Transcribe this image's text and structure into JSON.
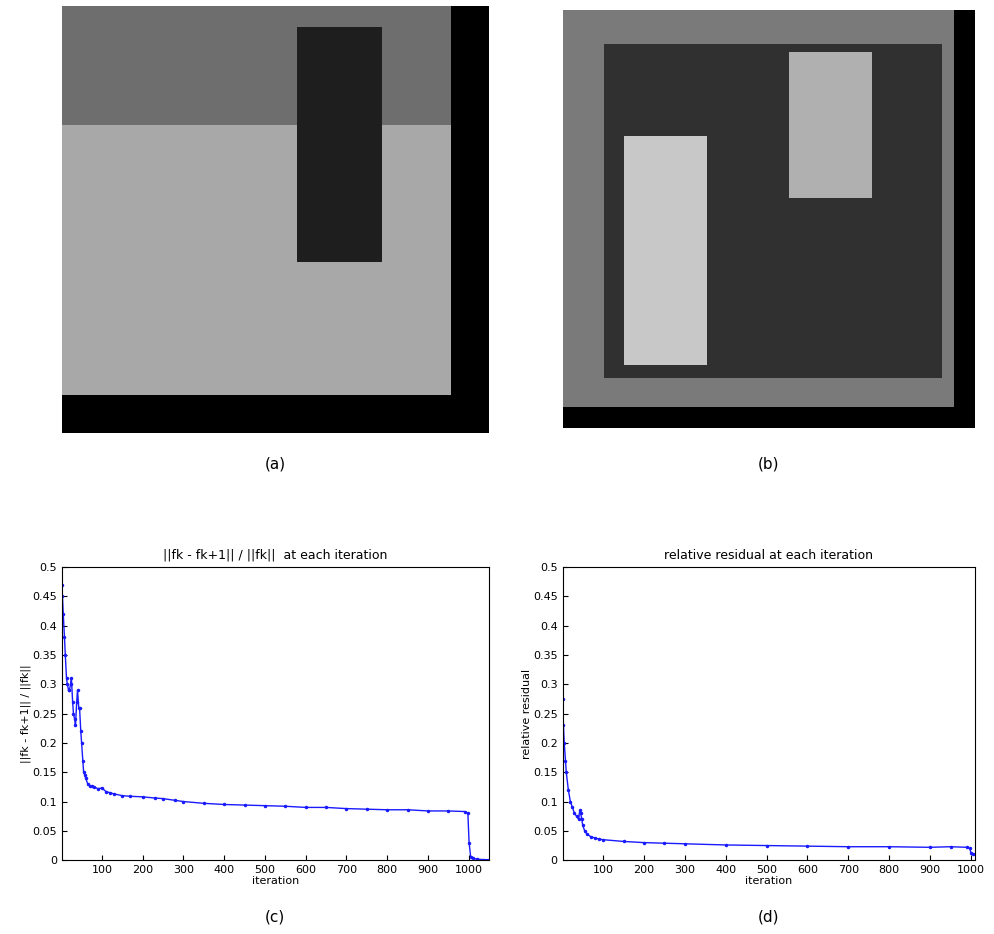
{
  "images": [
    {
      "caption": "(a)"
    },
    {
      "caption": "(b)"
    }
  ],
  "chart_data": [
    {
      "type": "line",
      "caption": "(c)",
      "title": "||fk - fk+1|| / ||fk||  at each iteration",
      "x_label": "iteration",
      "y_label": "||fk - fk+1|| / ||fk||",
      "xlim": [
        1,
        1050
      ],
      "xticks": [
        100,
        200,
        300,
        400,
        500,
        600,
        700,
        800,
        900,
        1000
      ],
      "ylim": [
        0,
        0.5
      ],
      "yticks": [
        0,
        0.05,
        0.1,
        0.15,
        0.2,
        0.25,
        0.3,
        0.35,
        0.4,
        0.45,
        0.5
      ],
      "grid": false,
      "series": [
        {
          "name": "||fk - fk+1|| / ||fk||",
          "color": "#1a1aff",
          "marker": "point",
          "line_style": "solid",
          "x": [
            1,
            3,
            5,
            8,
            10,
            13,
            15,
            18,
            20,
            23,
            25,
            28,
            30,
            33,
            35,
            38,
            40,
            43,
            45,
            48,
            50,
            53,
            55,
            58,
            60,
            65,
            70,
            75,
            80,
            90,
            100,
            110,
            120,
            130,
            150,
            170,
            200,
            230,
            250,
            280,
            300,
            350,
            400,
            450,
            500,
            550,
            600,
            650,
            700,
            750,
            800,
            850,
            900,
            950,
            990,
            998,
            1001,
            1005,
            1010,
            1020,
            1035,
            1050
          ],
          "values": [
            0.47,
            0.45,
            0.42,
            0.38,
            0.35,
            0.31,
            0.3,
            0.29,
            0.29,
            0.3,
            0.31,
            0.27,
            0.25,
            0.24,
            0.23,
            0.27,
            0.29,
            0.26,
            0.26,
            0.22,
            0.2,
            0.17,
            0.15,
            0.145,
            0.14,
            0.13,
            0.127,
            0.126,
            0.125,
            0.122,
            0.123,
            0.117,
            0.115,
            0.113,
            0.11,
            0.109,
            0.108,
            0.106,
            0.105,
            0.102,
            0.1,
            0.097,
            0.095,
            0.094,
            0.093,
            0.092,
            0.09,
            0.09,
            0.088,
            0.087,
            0.086,
            0.086,
            0.084,
            0.084,
            0.083,
            0.08,
            0.03,
            0.005,
            0.003,
            0.002,
            0.001,
            0.001
          ]
        }
      ]
    },
    {
      "type": "line",
      "caption": "(d)",
      "title": "relative residual at each iteration",
      "x_label": "iteration",
      "y_label": "relative residual",
      "xlim": [
        1,
        1010
      ],
      "xticks": [
        100,
        200,
        300,
        400,
        500,
        600,
        700,
        800,
        900,
        1000
      ],
      "ylim": [
        0,
        0.5
      ],
      "yticks": [
        0,
        0.05,
        0.1,
        0.15,
        0.2,
        0.25,
        0.3,
        0.35,
        0.4,
        0.45,
        0.5
      ],
      "grid": false,
      "series": [
        {
          "name": "relative residual",
          "color": "#1a1aff",
          "marker": "point",
          "line_style": "solid",
          "x": [
            1,
            3,
            5,
            8,
            10,
            15,
            20,
            25,
            30,
            35,
            40,
            43,
            45,
            48,
            50,
            55,
            60,
            70,
            80,
            90,
            100,
            150,
            200,
            250,
            300,
            400,
            500,
            600,
            700,
            800,
            900,
            950,
            990,
            997,
            1000,
            1005,
            1010
          ],
          "values": [
            0.275,
            0.23,
            0.2,
            0.17,
            0.15,
            0.12,
            0.1,
            0.09,
            0.08,
            0.075,
            0.07,
            0.085,
            0.08,
            0.07,
            0.06,
            0.05,
            0.045,
            0.04,
            0.038,
            0.036,
            0.035,
            0.032,
            0.03,
            0.029,
            0.028,
            0.026,
            0.025,
            0.024,
            0.023,
            0.023,
            0.022,
            0.023,
            0.022,
            0.02,
            0.012,
            0.011,
            0.011
          ]
        }
      ]
    }
  ]
}
